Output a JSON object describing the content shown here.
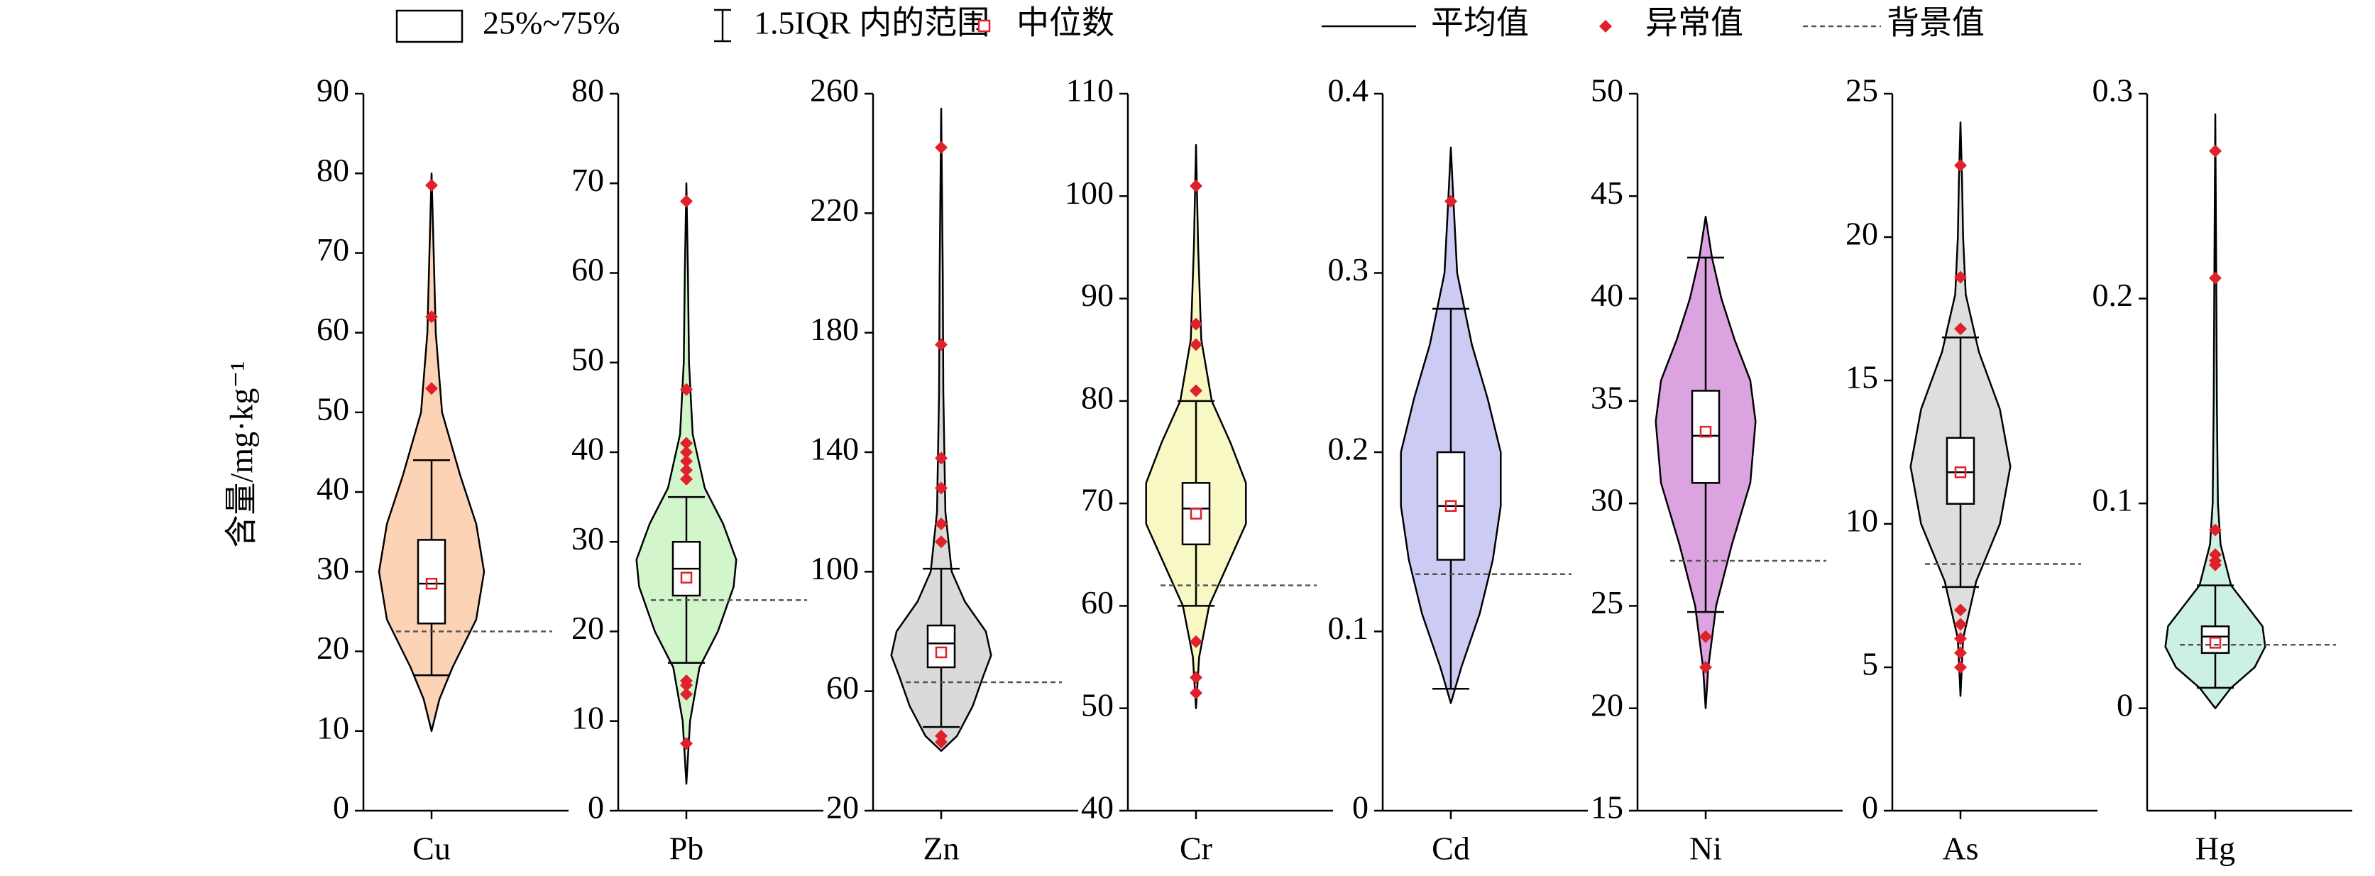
{
  "legend": [
    "25%~75%",
    "1.5IQR 内的范围",
    "中位数",
    "平均值",
    "异常值",
    "背景值"
  ],
  "ylabel": "含量/mg·kg⁻¹",
  "chart_data": [
    {
      "type": "violin",
      "xlabel": "Cu",
      "color": "#fdd3b5",
      "ylim": [
        0,
        90
      ],
      "yticks": [
        0,
        10,
        20,
        30,
        40,
        50,
        60,
        70,
        80,
        90
      ],
      "box": [
        23.5,
        34
      ],
      "median": 28.5,
      "mean": 28.5,
      "whisker": [
        17,
        44
      ],
      "outliers": [
        53,
        62,
        78.5
      ],
      "background": 22.5,
      "density_y": [
        10,
        14,
        18,
        24,
        30,
        36,
        42,
        50,
        60,
        70,
        80
      ],
      "density": [
        0,
        0.15,
        0.4,
        0.85,
        1,
        0.85,
        0.55,
        0.2,
        0.08,
        0.04,
        0
      ]
    },
    {
      "type": "violin",
      "xlabel": "Pb",
      "color": "#d3f5cc",
      "ylim": [
        0,
        80
      ],
      "yticks": [
        0,
        10,
        20,
        30,
        40,
        50,
        60,
        70,
        80
      ],
      "box": [
        24,
        30
      ],
      "median": 26,
      "mean": 27,
      "whisker": [
        16.5,
        35
      ],
      "outliers": [
        7.5,
        13,
        14,
        14.5,
        37,
        38,
        39,
        40,
        41,
        47,
        68
      ],
      "background": 23.5,
      "density_y": [
        3,
        10,
        16,
        20,
        25,
        28,
        32,
        36,
        42,
        50,
        60,
        70
      ],
      "density": [
        0,
        0.07,
        0.25,
        0.6,
        0.9,
        0.95,
        0.7,
        0.35,
        0.12,
        0.05,
        0.03,
        0
      ]
    },
    {
      "type": "violin",
      "xlabel": "Zn",
      "color": "#dadada",
      "ylim": [
        20,
        260
      ],
      "yticks": [
        20,
        60,
        100,
        140,
        180,
        220,
        260
      ],
      "box": [
        68,
        82
      ],
      "median": 73,
      "mean": 76,
      "whisker": [
        48,
        101
      ],
      "outliers": [
        43,
        45,
        110,
        116,
        128,
        138,
        176,
        242
      ],
      "background": 63,
      "density_y": [
        40,
        45,
        55,
        65,
        72,
        80,
        90,
        100,
        120,
        160,
        200,
        255
      ],
      "density": [
        0,
        0.3,
        0.6,
        0.8,
        0.95,
        0.85,
        0.45,
        0.2,
        0.08,
        0.04,
        0.03,
        0
      ]
    },
    {
      "type": "violin",
      "xlabel": "Cr",
      "color": "#f7f8c4",
      "ylim": [
        40,
        110
      ],
      "yticks": [
        40,
        50,
        60,
        70,
        80,
        90,
        100,
        110
      ],
      "box": [
        66,
        72
      ],
      "median": 69,
      "mean": 69.5,
      "whisker": [
        60,
        80
      ],
      "outliers": [
        51.5,
        53,
        56.5,
        81,
        85.5,
        87.5,
        101
      ],
      "background": 62,
      "density_y": [
        50,
        55,
        60,
        64,
        68,
        72,
        76,
        80,
        86,
        95,
        105
      ],
      "density": [
        0,
        0.06,
        0.25,
        0.6,
        0.95,
        0.95,
        0.65,
        0.3,
        0.1,
        0.04,
        0
      ]
    },
    {
      "type": "violin",
      "xlabel": "Cd",
      "color": "#cccbf4",
      "ylim": [
        0,
        0.4
      ],
      "yticks": [
        0,
        0.1,
        0.2,
        0.3,
        0.4
      ],
      "box": [
        0.14,
        0.2
      ],
      "median": 0.17,
      "mean": 0.17,
      "whisker": [
        0.068,
        0.28
      ],
      "outliers": [
        0.34
      ],
      "background": 0.132,
      "density_y": [
        0.06,
        0.08,
        0.11,
        0.14,
        0.17,
        0.2,
        0.23,
        0.26,
        0.3,
        0.34,
        0.37
      ],
      "density": [
        0,
        0.2,
        0.55,
        0.8,
        0.95,
        0.95,
        0.7,
        0.4,
        0.12,
        0.05,
        0
      ]
    },
    {
      "type": "violin",
      "xlabel": "Ni",
      "color": "#dba3df",
      "ylim": [
        15,
        50
      ],
      "yticks": [
        15,
        20,
        25,
        30,
        35,
        40,
        45,
        50
      ],
      "box": [
        31,
        35.5
      ],
      "median": 33.5,
      "mean": 33.3,
      "whisker": [
        24.7,
        42
      ],
      "outliers": [
        22,
        23.5
      ],
      "background": 27.2,
      "density_y": [
        20,
        22,
        25,
        28,
        31,
        34,
        36,
        38,
        40,
        42,
        44
      ],
      "density": [
        0,
        0.05,
        0.2,
        0.5,
        0.85,
        0.95,
        0.85,
        0.55,
        0.3,
        0.12,
        0
      ]
    },
    {
      "type": "violin",
      "xlabel": "As",
      "color": "#dedede",
      "ylim": [
        0,
        25
      ],
      "yticks": [
        0,
        5,
        10,
        15,
        20,
        25
      ],
      "box": [
        10.7,
        13
      ],
      "median": 11.8,
      "mean": 11.8,
      "whisker": [
        7.8,
        16.5
      ],
      "outliers": [
        5,
        5.5,
        6,
        6.5,
        7,
        16.8,
        18.6,
        22.5
      ],
      "background": 8.6,
      "density_y": [
        4,
        6,
        8,
        10,
        12,
        14,
        16,
        18,
        20,
        22,
        24
      ],
      "density": [
        0,
        0.05,
        0.3,
        0.75,
        0.95,
        0.75,
        0.35,
        0.1,
        0.05,
        0.03,
        0
      ]
    },
    {
      "type": "violin",
      "xlabel": "Hg",
      "color": "#ccf1e2",
      "ylim": [
        -0.05,
        0.3
      ],
      "yticks": [
        0,
        0.1,
        0.2,
        0.3
      ],
      "box": [
        0.027,
        0.04
      ],
      "median": 0.032,
      "mean": 0.035,
      "whisker": [
        0.01,
        0.06
      ],
      "outliers": [
        0.07,
        0.072,
        0.075,
        0.087,
        0.21,
        0.272
      ],
      "background": 0.031,
      "density_y": [
        0,
        0.01,
        0.02,
        0.03,
        0.04,
        0.05,
        0.06,
        0.08,
        0.1,
        0.15,
        0.2,
        0.25,
        0.29
      ],
      "density": [
        0,
        0.3,
        0.75,
        0.95,
        0.9,
        0.6,
        0.3,
        0.1,
        0.05,
        0.03,
        0.02,
        0.01,
        0
      ]
    }
  ]
}
